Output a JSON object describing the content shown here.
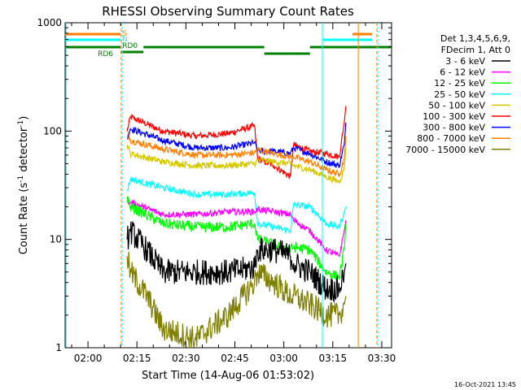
{
  "chart_data": {
    "type": "line",
    "title": "RHESSI Observing Summary Count Rates",
    "xlabel": "Start Time (14-Aug-06 01:53:02)",
    "ylabel_main": "Count Rate (s",
    "ylabel_sup": "-1",
    "ylabel_tail": " detector",
    "ylabel_sup2": "-1",
    "ylabel_close": ")",
    "yscale": "log",
    "ylim": [
      1,
      1000
    ],
    "xlim_minutes": [
      "01:53",
      "03:33"
    ],
    "x_ticks": [
      {
        "label": "02:00",
        "t": 7
      },
      {
        "label": "02:15",
        "t": 22
      },
      {
        "label": "02:30",
        "t": 37
      },
      {
        "label": "02:45",
        "t": 52
      },
      {
        "label": "03:00",
        "t": 67
      },
      {
        "label": "03:15",
        "t": 82
      },
      {
        "label": "03:30",
        "t": 97
      }
    ],
    "y_ticks": [
      {
        "label": "1",
        "v": 1
      },
      {
        "label": "10",
        "v": 10
      },
      {
        "label": "100",
        "v": 100
      },
      {
        "label": "1000",
        "v": 1000
      }
    ],
    "legend": {
      "placement": "right",
      "header": [
        "Det 1,3,4,5,6,9,",
        "FDecim 1, Att 0"
      ],
      "entries": [
        {
          "label": "3 - 6 keV",
          "color": "#000000"
        },
        {
          "label": "6 - 12 keV",
          "color": "#ff00ff"
        },
        {
          "label": "12 - 25 keV",
          "color": "#00ff00"
        },
        {
          "label": "25 - 50 keV",
          "color": "#00ffff"
        },
        {
          "label": "50 - 100 keV",
          "color": "#d4c800"
        },
        {
          "label": "100 - 300 keV",
          "color": "#ff0000"
        },
        {
          "label": "300 - 800 keV",
          "color": "#0000ff"
        },
        {
          "label": "800 - 7000 keV",
          "color": "#ff8000"
        },
        {
          "label": "7000 - 15000 keV",
          "color": "#808000"
        }
      ]
    },
    "series": [
      {
        "color": "#ff0000",
        "points": [
          [
            19,
            100
          ],
          [
            20,
            135
          ],
          [
            30,
            100
          ],
          [
            40,
            90
          ],
          [
            50,
            95
          ],
          [
            58,
            112
          ],
          [
            59,
            55
          ],
          [
            64,
            48
          ],
          [
            69,
            38
          ],
          [
            70,
            75
          ],
          [
            75,
            65
          ],
          [
            80,
            62
          ],
          [
            84,
            58
          ],
          [
            85.5,
            120
          ],
          [
            86,
            170
          ]
        ]
      },
      {
        "color": "#0000ff",
        "points": [
          [
            19,
            85
          ],
          [
            20,
            105
          ],
          [
            30,
            82
          ],
          [
            40,
            70
          ],
          [
            50,
            70
          ],
          [
            58,
            78
          ],
          [
            59,
            66
          ],
          [
            64,
            65
          ],
          [
            69,
            62
          ],
          [
            70,
            70
          ],
          [
            75,
            62
          ],
          [
            80,
            52
          ],
          [
            84,
            48
          ],
          [
            85.5,
            75
          ],
          [
            86,
            120
          ]
        ]
      },
      {
        "color": "#ff8000",
        "points": [
          [
            19,
            100
          ],
          [
            20,
            82
          ],
          [
            30,
            68
          ],
          [
            40,
            60
          ],
          [
            50,
            60
          ],
          [
            58,
            63
          ],
          [
            59,
            67
          ],
          [
            64,
            62
          ],
          [
            69,
            58
          ],
          [
            70,
            58
          ],
          [
            75,
            52
          ],
          [
            80,
            44
          ],
          [
            84,
            40
          ],
          [
            85.5,
            55
          ],
          [
            86,
            90
          ]
        ]
      },
      {
        "color": "#d4c800",
        "points": [
          [
            19,
            75
          ],
          [
            20,
            62
          ],
          [
            30,
            52
          ],
          [
            40,
            48
          ],
          [
            50,
            48
          ],
          [
            58,
            50
          ],
          [
            59,
            54
          ],
          [
            64,
            52
          ],
          [
            69,
            50
          ],
          [
            70,
            48
          ],
          [
            75,
            44
          ],
          [
            80,
            38
          ],
          [
            84,
            34
          ],
          [
            85.5,
            45
          ],
          [
            86,
            70
          ]
        ]
      },
      {
        "color": "#00ffff",
        "points": [
          [
            19,
            28
          ],
          [
            20,
            36
          ],
          [
            30,
            30
          ],
          [
            40,
            26
          ],
          [
            50,
            26
          ],
          [
            58,
            27
          ],
          [
            59,
            14
          ],
          [
            64,
            13
          ],
          [
            69,
            12
          ],
          [
            70,
            21
          ],
          [
            75,
            20
          ],
          [
            80,
            14
          ],
          [
            84,
            13
          ],
          [
            85.5,
            18
          ],
          [
            86,
            20
          ]
        ]
      },
      {
        "color": "#ff00ff",
        "points": [
          [
            19,
            22
          ],
          [
            20,
            22
          ],
          [
            30,
            17
          ],
          [
            40,
            17
          ],
          [
            50,
            18
          ],
          [
            58,
            18
          ],
          [
            59,
            19
          ],
          [
            64,
            18
          ],
          [
            69,
            17
          ],
          [
            70,
            15
          ],
          [
            75,
            12
          ],
          [
            80,
            8
          ],
          [
            84,
            7
          ],
          [
            85.5,
            12
          ],
          [
            86,
            15
          ]
        ]
      },
      {
        "color": "#00ff00",
        "points": [
          [
            19,
            25
          ],
          [
            20,
            20
          ],
          [
            30,
            14
          ],
          [
            40,
            13
          ],
          [
            50,
            13
          ],
          [
            58,
            14
          ],
          [
            59,
            10
          ],
          [
            64,
            9
          ],
          [
            69,
            8
          ],
          [
            70,
            8.5
          ],
          [
            75,
            8
          ],
          [
            80,
            5
          ],
          [
            84,
            4.5
          ],
          [
            85.5,
            8
          ],
          [
            86,
            14
          ]
        ]
      },
      {
        "color": "#000000",
        "points": [
          [
            19,
            10
          ],
          [
            20,
            12
          ],
          [
            25,
            8
          ],
          [
            30,
            5
          ],
          [
            40,
            5
          ],
          [
            50,
            5
          ],
          [
            58,
            5.5
          ],
          [
            59,
            8
          ],
          [
            64,
            8
          ],
          [
            69,
            7
          ],
          [
            70,
            6
          ],
          [
            75,
            5
          ],
          [
            80,
            3.5
          ],
          [
            84,
            3.5
          ],
          [
            85.5,
            5
          ],
          [
            86,
            6
          ]
        ]
      },
      {
        "color": "#808000",
        "points": [
          [
            19,
            7
          ],
          [
            20,
            5
          ],
          [
            25,
            3
          ],
          [
            30,
            1.5
          ],
          [
            40,
            1.2
          ],
          [
            50,
            2
          ],
          [
            58,
            4
          ],
          [
            59,
            5
          ],
          [
            64,
            4
          ],
          [
            69,
            3
          ],
          [
            70,
            3
          ],
          [
            75,
            2.5
          ],
          [
            80,
            2
          ],
          [
            84,
            2
          ],
          [
            85.5,
            2.5
          ],
          [
            86,
            3
          ]
        ]
      }
    ],
    "flags": {
      "S_label": "S",
      "N_label": "N",
      "RD0_label": "RD0",
      "RD6_label": "RD6"
    },
    "timestamp": "16-Oct-2021 13:45"
  }
}
